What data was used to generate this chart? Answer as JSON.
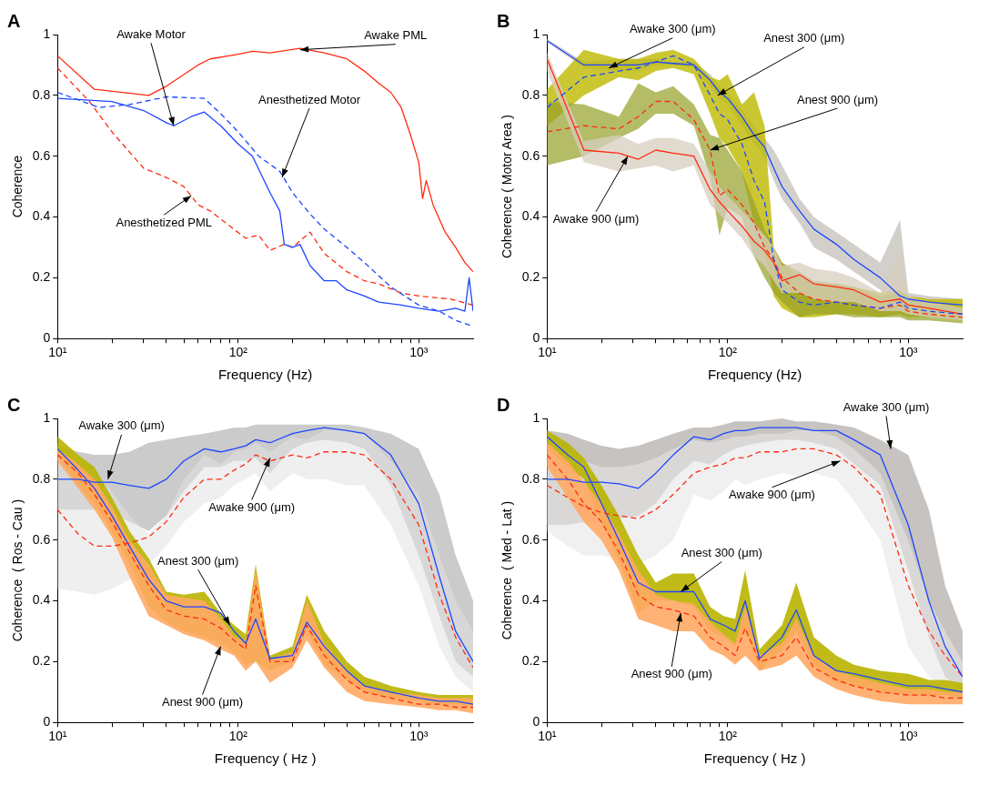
{
  "chart_data": [
    {
      "type": "line",
      "title": "A",
      "xlabel": "Frequency (Hz)",
      "ylabel": "Coherence",
      "log": "x",
      "grid": false,
      "xlim": [
        10,
        2000
      ],
      "ylim": [
        0,
        1
      ],
      "xticks": [
        {
          "value": 10,
          "label": "10¹"
        },
        {
          "value": 20,
          "label": null
        },
        {
          "value": 30,
          "label": null
        },
        {
          "value": 40,
          "label": null
        },
        {
          "value": 50,
          "label": null
        },
        {
          "value": 60,
          "label": null
        },
        {
          "value": 70,
          "label": null
        },
        {
          "value": 80,
          "label": null
        },
        {
          "value": 90,
          "label": null
        },
        {
          "value": 100,
          "label": "10²"
        },
        {
          "value": 200,
          "label": null
        },
        {
          "value": 300,
          "label": null
        },
        {
          "value": 400,
          "label": null
        },
        {
          "value": 500,
          "label": null
        },
        {
          "value": 600,
          "label": null
        },
        {
          "value": 700,
          "label": null
        },
        {
          "value": 800,
          "label": null
        },
        {
          "value": 900,
          "label": null
        },
        {
          "value": 1000,
          "label": "10³"
        }
      ],
      "yticks": [
        0,
        0.2,
        0.4,
        0.6,
        0.8,
        1
      ],
      "series": [
        {
          "color": "#ff2a10",
          "line_style": "solid",
          "x": [
            10,
            16,
            32,
            40,
            60,
            70,
            100,
            120,
            150,
            220,
            300,
            400,
            500,
            600,
            700,
            800,
            900,
            1000,
            1050,
            1100,
            1200,
            1400,
            1600,
            1800,
            2000
          ],
          "values": [
            0.93,
            0.82,
            0.8,
            0.83,
            0.9,
            0.92,
            0.935,
            0.945,
            0.94,
            0.955,
            0.94,
            0.92,
            0.88,
            0.84,
            0.81,
            0.76,
            0.67,
            0.58,
            0.46,
            0.52,
            0.44,
            0.35,
            0.3,
            0.25,
            0.22
          ]
        },
        {
          "color": "#1e46ff",
          "line_style": "solid",
          "x": [
            10,
            20,
            30,
            40,
            44,
            55,
            65,
            80,
            100,
            120,
            150,
            170,
            180,
            200,
            220,
            250,
            300,
            350,
            400,
            500,
            600,
            800,
            1000,
            1300,
            1600,
            1800,
            1900,
            2000
          ],
          "values": [
            0.79,
            0.78,
            0.75,
            0.71,
            0.7,
            0.73,
            0.745,
            0.7,
            0.64,
            0.6,
            0.48,
            0.42,
            0.31,
            0.3,
            0.31,
            0.24,
            0.19,
            0.19,
            0.16,
            0.14,
            0.12,
            0.11,
            0.1,
            0.09,
            0.1,
            0.09,
            0.2,
            0.09
          ]
        },
        {
          "color": "#1e46ff",
          "line_style": "dashed",
          "x": [
            10,
            17,
            25,
            40,
            65,
            80,
            100,
            130,
            170,
            200,
            250,
            300,
            400,
            500,
            700,
            1000,
            1300,
            1600,
            2000
          ],
          "values": [
            0.81,
            0.76,
            0.77,
            0.795,
            0.79,
            0.74,
            0.68,
            0.6,
            0.55,
            0.48,
            0.41,
            0.36,
            0.3,
            0.25,
            0.17,
            0.11,
            0.09,
            0.06,
            0.04
          ]
        },
        {
          "color": "#ff2a10",
          "line_style": "dashed",
          "x": [
            10,
            15,
            20,
            30,
            40,
            50,
            60,
            70,
            90,
            110,
            130,
            150,
            180,
            200,
            250,
            300,
            400,
            500,
            600,
            800,
            1000,
            1500,
            2000
          ],
          "values": [
            0.89,
            0.78,
            0.68,
            0.56,
            0.53,
            0.5,
            0.44,
            0.42,
            0.37,
            0.33,
            0.34,
            0.29,
            0.31,
            0.3,
            0.35,
            0.28,
            0.22,
            0.19,
            0.18,
            0.15,
            0.14,
            0.13,
            0.11
          ]
        }
      ],
      "annotations": [
        {
          "text": "Awake Motor",
          "x": 44,
          "y": 0.7
        },
        {
          "text": "Awake PML",
          "x": 220,
          "y": 0.95
        },
        {
          "text": "Anesthetized Motor",
          "x": 175,
          "y": 0.53
        },
        {
          "text": "Anesthetized PML",
          "x": 55,
          "y": 0.47
        }
      ]
    },
    {
      "type": "line",
      "title": "B",
      "xlabel": "Frequency (Hz)",
      "ylabel": "Coherence ( Motor Area )",
      "log": "x",
      "grid": false,
      "xlim": [
        10,
        2000
      ],
      "ylim": [
        0,
        1
      ],
      "xticks": [
        {
          "value": 10,
          "label": "10¹"
        },
        {
          "value": 20,
          "label": null
        },
        {
          "value": 30,
          "label": null
        },
        {
          "value": 40,
          "label": null
        },
        {
          "value": 50,
          "label": null
        },
        {
          "value": 60,
          "label": null
        },
        {
          "value": 70,
          "label": null
        },
        {
          "value": 80,
          "label": null
        },
        {
          "value": 90,
          "label": null
        },
        {
          "value": 100,
          "label": "10²"
        },
        {
          "value": 200,
          "label": null
        },
        {
          "value": 300,
          "label": null
        },
        {
          "value": 400,
          "label": null
        },
        {
          "value": 500,
          "label": null
        },
        {
          "value": 600,
          "label": null
        },
        {
          "value": 700,
          "label": null
        },
        {
          "value": 800,
          "label": null
        },
        {
          "value": 900,
          "label": null
        },
        {
          "value": 1000,
          "label": "10³"
        }
      ],
      "yticks": [
        0,
        0.2,
        0.4,
        0.6,
        0.8,
        1
      ],
      "x": [
        10,
        16,
        25,
        32,
        40,
        50,
        65,
        80,
        90,
        100,
        120,
        140,
        160,
        180,
        200,
        250,
        300,
        400,
        500,
        700,
        900,
        1000,
        1300,
        2000
      ],
      "series": [
        {
          "color": "#1e46ff",
          "line_style": "solid",
          "values": [
            0.98,
            0.9,
            0.9,
            0.9,
            0.91,
            0.905,
            0.9,
            0.85,
            0.81,
            0.79,
            0.73,
            0.67,
            0.63,
            0.56,
            0.5,
            0.42,
            0.36,
            0.31,
            0.26,
            0.2,
            0.14,
            0.13,
            0.12,
            0.11
          ],
          "lower": [
            0.975,
            0.89,
            0.88,
            0.88,
            0.9,
            0.9,
            0.89,
            0.83,
            0.79,
            0.77,
            0.7,
            0.64,
            0.6,
            0.52,
            0.46,
            0.38,
            0.3,
            0.26,
            0.22,
            0.16,
            0.11,
            0.1,
            0.1,
            0.09
          ],
          "upper": [
            0.985,
            0.91,
            0.92,
            0.92,
            0.92,
            0.91,
            0.91,
            0.87,
            0.83,
            0.81,
            0.75,
            0.7,
            0.66,
            0.62,
            0.57,
            0.46,
            0.4,
            0.35,
            0.31,
            0.25,
            0.39,
            0.15,
            0.14,
            0.13
          ]
        },
        {
          "color": "#1e46ff",
          "line_style": "dashed",
          "values": [
            0.76,
            0.86,
            0.88,
            0.89,
            0.91,
            0.93,
            0.9,
            0.8,
            0.74,
            0.72,
            0.64,
            0.52,
            0.45,
            0.26,
            0.16,
            0.12,
            0.11,
            0.12,
            0.11,
            0.1,
            0.12,
            0.1,
            0.09,
            0.08
          ],
          "lower": [
            0.7,
            0.8,
            0.86,
            0.85,
            0.88,
            0.89,
            0.87,
            0.74,
            0.66,
            0.63,
            0.55,
            0.38,
            0.3,
            0.14,
            0.1,
            0.07,
            0.07,
            0.08,
            0.08,
            0.07,
            0.08,
            0.07,
            0.07,
            0.06
          ],
          "upper": [
            0.82,
            0.95,
            0.92,
            0.92,
            0.94,
            0.95,
            0.92,
            0.86,
            0.85,
            0.87,
            0.77,
            0.81,
            0.7,
            0.3,
            0.25,
            0.2,
            0.18,
            0.18,
            0.17,
            0.15,
            0.16,
            0.14,
            0.13,
            0.13
          ]
        },
        {
          "color": "#ff2a10",
          "line_style": "dashed",
          "values": [
            0.68,
            0.7,
            0.69,
            0.73,
            0.78,
            0.78,
            0.72,
            0.62,
            0.47,
            0.49,
            0.44,
            0.38,
            0.3,
            0.26,
            0.2,
            0.15,
            0.13,
            0.12,
            0.11,
            0.1,
            0.11,
            0.09,
            0.08,
            0.07
          ],
          "lower": [
            0.57,
            0.6,
            0.66,
            0.69,
            0.74,
            0.74,
            0.7,
            0.53,
            0.34,
            0.43,
            0.4,
            0.27,
            0.2,
            0.15,
            0.12,
            0.07,
            0.08,
            0.08,
            0.07,
            0.07,
            0.07,
            0.06,
            0.06,
            0.05
          ],
          "upper": [
            0.78,
            0.77,
            0.73,
            0.84,
            0.81,
            0.83,
            0.77,
            0.67,
            0.66,
            0.62,
            0.55,
            0.45,
            0.36,
            0.3,
            0.25,
            0.22,
            0.19,
            0.18,
            0.17,
            0.14,
            0.15,
            0.13,
            0.11,
            0.1
          ]
        },
        {
          "color": "#ff2a10",
          "line_style": "solid",
          "values": [
            0.92,
            0.62,
            0.61,
            0.59,
            0.62,
            0.61,
            0.6,
            0.49,
            0.45,
            0.42,
            0.37,
            0.32,
            0.29,
            0.25,
            0.19,
            0.21,
            0.18,
            0.17,
            0.16,
            0.12,
            0.13,
            0.11,
            0.1,
            0.08
          ],
          "lower": [
            0.88,
            0.58,
            0.55,
            0.56,
            0.57,
            0.55,
            0.57,
            0.44,
            0.41,
            0.38,
            0.33,
            0.27,
            0.24,
            0.19,
            0.15,
            0.15,
            0.13,
            0.12,
            0.12,
            0.09,
            0.09,
            0.08,
            0.07,
            0.06
          ],
          "upper": [
            0.94,
            0.65,
            0.67,
            0.64,
            0.66,
            0.66,
            0.64,
            0.55,
            0.5,
            0.47,
            0.42,
            0.38,
            0.34,
            0.3,
            0.24,
            0.25,
            0.23,
            0.22,
            0.2,
            0.15,
            0.28,
            0.14,
            0.12,
            0.1
          ]
        }
      ],
      "annotations": [
        {
          "text": "Awake 300 (μm)",
          "x": 22,
          "y": 0.89
        },
        {
          "text": "Anest 300 (μm)",
          "x": 88,
          "y": 0.8
        },
        {
          "text": "Anest 900 (μm)",
          "x": 80,
          "y": 0.62
        },
        {
          "text": "Awake 900 (μm)",
          "x": 28,
          "y": 0.6
        }
      ]
    },
    {
      "type": "line",
      "title": "C",
      "xlabel": "Frequency ( Hz )",
      "ylabel": "Coherence  ( Ros - Cau )",
      "log": "x",
      "grid": false,
      "xlim": [
        10,
        2000
      ],
      "ylim": [
        0,
        1
      ],
      "xticks": [
        {
          "value": 10,
          "label": "10¹"
        },
        {
          "value": 20,
          "label": null
        },
        {
          "value": 30,
          "label": null
        },
        {
          "value": 40,
          "label": null
        },
        {
          "value": 50,
          "label": null
        },
        {
          "value": 60,
          "label": null
        },
        {
          "value": 70,
          "label": null
        },
        {
          "value": 80,
          "label": null
        },
        {
          "value": 90,
          "label": null
        },
        {
          "value": 100,
          "label": "10²"
        },
        {
          "value": 200,
          "label": null
        },
        {
          "value": 300,
          "label": null
        },
        {
          "value": 400,
          "label": null
        },
        {
          "value": 500,
          "label": null
        },
        {
          "value": 600,
          "label": null
        },
        {
          "value": 700,
          "label": null
        },
        {
          "value": 800,
          "label": null
        },
        {
          "value": 900,
          "label": null
        },
        {
          "value": 1000,
          "label": "10³"
        }
      ],
      "yticks": [
        0,
        0.2,
        0.4,
        0.6,
        0.8,
        1
      ],
      "x": [
        10,
        13,
        16,
        20,
        25,
        32,
        40,
        50,
        65,
        80,
        95,
        110,
        125,
        150,
        200,
        240,
        300,
        400,
        500,
        700,
        1000,
        1300,
        1600,
        2000
      ],
      "series": [
        {
          "color": "#1e46ff",
          "line_style": "solid",
          "values": [
            0.8,
            0.8,
            0.79,
            0.79,
            0.78,
            0.77,
            0.8,
            0.86,
            0.9,
            0.89,
            0.9,
            0.91,
            0.93,
            0.92,
            0.95,
            0.96,
            0.97,
            0.96,
            0.95,
            0.88,
            0.72,
            0.48,
            0.3,
            0.2
          ],
          "lower": [
            0.7,
            0.7,
            0.7,
            0.69,
            0.66,
            0.63,
            0.68,
            0.76,
            0.84,
            0.84,
            0.86,
            0.86,
            0.87,
            0.82,
            0.9,
            0.92,
            0.93,
            0.92,
            0.9,
            0.78,
            0.55,
            0.35,
            0.2,
            0.15
          ],
          "upper": [
            0.91,
            0.89,
            0.88,
            0.88,
            0.89,
            0.92,
            0.93,
            0.94,
            0.95,
            0.96,
            0.97,
            0.97,
            0.98,
            0.98,
            0.98,
            0.98,
            0.98,
            0.98,
            0.97,
            0.95,
            0.9,
            0.75,
            0.55,
            0.4
          ]
        },
        {
          "color": "#ff2a10",
          "line_style": "dashed",
          "values": [
            0.7,
            0.62,
            0.58,
            0.58,
            0.59,
            0.61,
            0.66,
            0.74,
            0.8,
            0.8,
            0.83,
            0.85,
            0.88,
            0.86,
            0.88,
            0.87,
            0.89,
            0.89,
            0.88,
            0.8,
            0.65,
            0.42,
            0.28,
            0.18
          ],
          "lower": [
            0.44,
            0.43,
            0.42,
            0.44,
            0.47,
            0.52,
            0.58,
            0.66,
            0.72,
            0.74,
            0.78,
            0.8,
            0.82,
            0.76,
            0.82,
            0.8,
            0.8,
            0.78,
            0.78,
            0.65,
            0.45,
            0.25,
            0.15,
            0.1
          ],
          "upper": [
            0.92,
            0.88,
            0.82,
            0.76,
            0.68,
            0.62,
            0.68,
            0.8,
            0.88,
            0.85,
            0.89,
            0.9,
            0.92,
            0.89,
            0.94,
            0.93,
            0.96,
            0.96,
            0.95,
            0.86,
            0.75,
            0.55,
            0.4,
            0.3
          ]
        },
        {
          "color": "#1e46ff",
          "line_style": "solid",
          "values": [
            0.9,
            0.83,
            0.77,
            0.68,
            0.58,
            0.47,
            0.4,
            0.38,
            0.38,
            0.36,
            0.3,
            0.26,
            0.34,
            0.21,
            0.22,
            0.33,
            0.25,
            0.17,
            0.12,
            0.1,
            0.08,
            0.07,
            0.07,
            0.06
          ],
          "lower": [
            0.88,
            0.78,
            0.72,
            0.63,
            0.52,
            0.38,
            0.33,
            0.3,
            0.28,
            0.26,
            0.23,
            0.19,
            0.2,
            0.17,
            0.2,
            0.3,
            0.19,
            0.14,
            0.1,
            0.08,
            0.07,
            0.06,
            0.06,
            0.05
          ],
          "upper": [
            0.94,
            0.88,
            0.84,
            0.74,
            0.63,
            0.54,
            0.43,
            0.42,
            0.43,
            0.36,
            0.32,
            0.29,
            0.52,
            0.22,
            0.25,
            0.42,
            0.3,
            0.2,
            0.15,
            0.12,
            0.1,
            0.09,
            0.09,
            0.09
          ]
        },
        {
          "color": "#ff2a10",
          "line_style": "dashed",
          "values": [
            0.88,
            0.82,
            0.75,
            0.66,
            0.56,
            0.45,
            0.37,
            0.35,
            0.34,
            0.31,
            0.27,
            0.24,
            0.45,
            0.2,
            0.2,
            0.32,
            0.22,
            0.14,
            0.1,
            0.08,
            0.06,
            0.06,
            0.05,
            0.05
          ],
          "lower": [
            0.86,
            0.77,
            0.7,
            0.61,
            0.48,
            0.35,
            0.32,
            0.29,
            0.27,
            0.24,
            0.22,
            0.17,
            0.2,
            0.13,
            0.18,
            0.27,
            0.18,
            0.1,
            0.07,
            0.06,
            0.05,
            0.04,
            0.04,
            0.03
          ],
          "upper": [
            0.9,
            0.85,
            0.8,
            0.71,
            0.6,
            0.52,
            0.42,
            0.41,
            0.4,
            0.34,
            0.28,
            0.27,
            0.5,
            0.21,
            0.23,
            0.4,
            0.26,
            0.17,
            0.12,
            0.1,
            0.09,
            0.08,
            0.08,
            0.08
          ]
        }
      ],
      "annotations": [
        {
          "text": "Awake 300 (μm)",
          "x": 19,
          "y": 0.8
        },
        {
          "text": "Awake 900 (μm)",
          "x": 150,
          "y": 0.87
        },
        {
          "text": "Anest 300 (μm)",
          "x": 90,
          "y": 0.32
        },
        {
          "text": "Anest 900 (μm)",
          "x": 80,
          "y": 0.25
        }
      ]
    },
    {
      "type": "line",
      "title": "D",
      "xlabel": "Frequency ( Hz )",
      "ylabel": "Coherence  ( Med - Lat )",
      "log": "x",
      "grid": false,
      "xlim": [
        10,
        2000
      ],
      "ylim": [
        0,
        1
      ],
      "xticks": [
        {
          "value": 10,
          "label": "10¹"
        },
        {
          "value": 20,
          "label": null
        },
        {
          "value": 30,
          "label": null
        },
        {
          "value": 40,
          "label": null
        },
        {
          "value": 50,
          "label": null
        },
        {
          "value": 60,
          "label": null
        },
        {
          "value": 70,
          "label": null
        },
        {
          "value": 80,
          "label": null
        },
        {
          "value": 90,
          "label": null
        },
        {
          "value": 100,
          "label": "10²"
        },
        {
          "value": 200,
          "label": null
        },
        {
          "value": 300,
          "label": null
        },
        {
          "value": 400,
          "label": null
        },
        {
          "value": 500,
          "label": null
        },
        {
          "value": 600,
          "label": null
        },
        {
          "value": 700,
          "label": null
        },
        {
          "value": 800,
          "label": null
        },
        {
          "value": 900,
          "label": null
        },
        {
          "value": 1000,
          "label": "10³"
        }
      ],
      "yticks": [
        0,
        0.2,
        0.4,
        0.6,
        0.8,
        1
      ],
      "x": [
        10,
        13,
        16,
        20,
        25,
        32,
        40,
        50,
        65,
        80,
        95,
        110,
        125,
        150,
        200,
        240,
        300,
        400,
        500,
        700,
        1000,
        1300,
        1600,
        2000
      ],
      "series": [
        {
          "color": "#1e46ff",
          "line_style": "solid",
          "values": [
            0.8,
            0.8,
            0.79,
            0.79,
            0.785,
            0.77,
            0.82,
            0.88,
            0.94,
            0.93,
            0.95,
            0.96,
            0.96,
            0.97,
            0.97,
            0.97,
            0.96,
            0.96,
            0.93,
            0.88,
            0.65,
            0.4,
            0.25,
            0.15
          ],
          "lower": [
            0.65,
            0.65,
            0.66,
            0.66,
            0.67,
            0.68,
            0.72,
            0.8,
            0.86,
            0.85,
            0.88,
            0.9,
            0.91,
            0.92,
            0.93,
            0.93,
            0.92,
            0.9,
            0.85,
            0.78,
            0.5,
            0.28,
            0.15,
            0.1
          ],
          "upper": [
            0.96,
            0.95,
            0.93,
            0.91,
            0.9,
            0.91,
            0.93,
            0.95,
            0.97,
            0.97,
            0.98,
            0.99,
            0.99,
            0.99,
            1,
            0.99,
            0.99,
            0.98,
            0.97,
            0.93,
            0.88,
            0.7,
            0.45,
            0.3
          ]
        },
        {
          "color": "#ff2a10",
          "line_style": "dashed",
          "values": [
            0.78,
            0.74,
            0.71,
            0.69,
            0.68,
            0.67,
            0.7,
            0.75,
            0.82,
            0.84,
            0.85,
            0.87,
            0.87,
            0.89,
            0.89,
            0.9,
            0.9,
            0.88,
            0.84,
            0.75,
            0.45,
            0.3,
            0.22,
            0.15
          ],
          "lower": [
            0.63,
            0.58,
            0.55,
            0.55,
            0.54,
            0.52,
            0.55,
            0.6,
            0.75,
            0.73,
            0.76,
            0.8,
            0.78,
            0.8,
            0.82,
            0.81,
            0.82,
            0.8,
            0.73,
            0.6,
            0.25,
            0.15,
            0.12,
            0.1
          ],
          "upper": [
            0.94,
            0.9,
            0.86,
            0.84,
            0.84,
            0.85,
            0.87,
            0.9,
            0.93,
            0.92,
            0.93,
            0.94,
            0.94,
            0.95,
            0.95,
            0.96,
            0.96,
            0.94,
            0.9,
            0.82,
            0.6,
            0.4,
            0.3,
            0.2
          ]
        },
        {
          "color": "#1e46ff",
          "line_style": "solid",
          "values": [
            0.94,
            0.88,
            0.84,
            0.72,
            0.6,
            0.46,
            0.43,
            0.43,
            0.43,
            0.34,
            0.32,
            0.3,
            0.4,
            0.21,
            0.28,
            0.37,
            0.22,
            0.17,
            0.16,
            0.14,
            0.12,
            0.12,
            0.11,
            0.1
          ],
          "lower": [
            0.9,
            0.84,
            0.8,
            0.66,
            0.53,
            0.36,
            0.4,
            0.4,
            0.38,
            0.3,
            0.28,
            0.25,
            0.3,
            0.17,
            0.24,
            0.3,
            0.19,
            0.13,
            0.12,
            0.1,
            0.09,
            0.09,
            0.09,
            0.08
          ],
          "upper": [
            0.96,
            0.92,
            0.87,
            0.78,
            0.68,
            0.55,
            0.46,
            0.49,
            0.49,
            0.38,
            0.35,
            0.34,
            0.5,
            0.24,
            0.32,
            0.46,
            0.28,
            0.22,
            0.19,
            0.17,
            0.16,
            0.14,
            0.14,
            0.13
          ]
        },
        {
          "color": "#ff2a10",
          "line_style": "dashed",
          "values": [
            0.88,
            0.8,
            0.72,
            0.66,
            0.56,
            0.42,
            0.38,
            0.37,
            0.35,
            0.28,
            0.25,
            0.22,
            0.31,
            0.2,
            0.22,
            0.28,
            0.18,
            0.14,
            0.12,
            0.1,
            0.09,
            0.09,
            0.08,
            0.08
          ],
          "lower": [
            0.84,
            0.74,
            0.66,
            0.6,
            0.5,
            0.34,
            0.32,
            0.3,
            0.3,
            0.24,
            0.22,
            0.19,
            0.22,
            0.17,
            0.19,
            0.22,
            0.15,
            0.11,
            0.09,
            0.07,
            0.06,
            0.06,
            0.06,
            0.06
          ],
          "upper": [
            0.92,
            0.86,
            0.79,
            0.72,
            0.62,
            0.5,
            0.42,
            0.4,
            0.39,
            0.33,
            0.29,
            0.26,
            0.38,
            0.22,
            0.26,
            0.34,
            0.22,
            0.17,
            0.15,
            0.13,
            0.11,
            0.11,
            0.1,
            0.1
          ]
        }
      ],
      "annotations": [
        {
          "text": "Awake 300 (μm)",
          "x": 800,
          "y": 0.9
        },
        {
          "text": "Awake 900 (μm)",
          "x": 420,
          "y": 0.86
        },
        {
          "text": "Anest 300 (μm)",
          "x": 55,
          "y": 0.43
        },
        {
          "text": "Anest 900 (μm)",
          "x": 55,
          "y": 0.36
        }
      ]
    }
  ]
}
